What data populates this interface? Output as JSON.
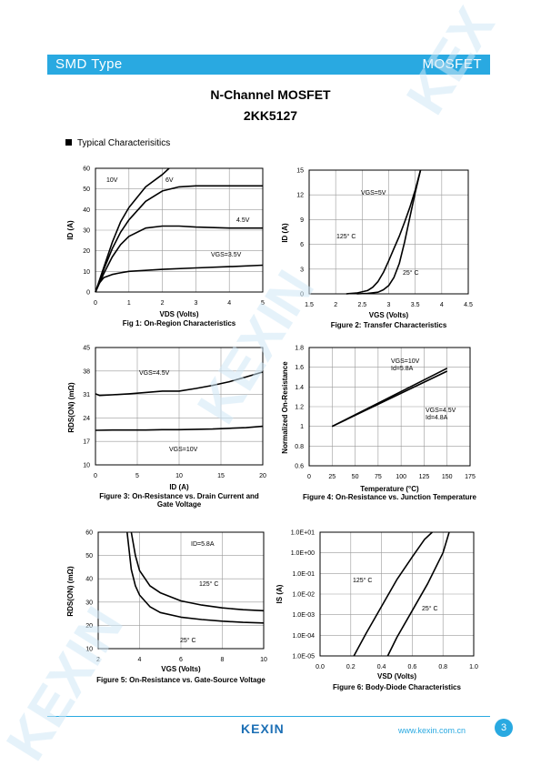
{
  "header": {
    "left": "SMD Type",
    "right": "MOSFET"
  },
  "title": {
    "line1": "N-Channel MOSFET",
    "line2": "2KK5127"
  },
  "section": "Typical  Characterisitics",
  "footer": {
    "logo": "KEXIN",
    "url": "www.kexin.com.cn",
    "page": "3"
  },
  "chart_data": [
    {
      "type": "line",
      "caption": "Fig 1: On-Region Characteristics",
      "xlabel": "VDS (Volts)",
      "ylabel": "ID (A)",
      "xlim": [
        0,
        5
      ],
      "ylim": [
        0,
        60
      ],
      "xticks": [
        "0",
        "1",
        "2",
        "3",
        "4",
        "5"
      ],
      "yticks": [
        "0",
        "10",
        "20",
        "30",
        "40",
        "50",
        "60"
      ],
      "series": [
        {
          "name": "10V",
          "x": [
            0,
            0.25,
            0.5,
            0.75,
            1,
            1.5,
            2,
            2.2
          ],
          "y": [
            0,
            12,
            24,
            34,
            41,
            51,
            57,
            60
          ]
        },
        {
          "name": "6V",
          "x": [
            0,
            0.25,
            0.5,
            0.75,
            1,
            1.5,
            2,
            2.5,
            3,
            4,
            5
          ],
          "y": [
            0,
            11,
            21,
            29,
            35,
            44,
            49,
            51,
            51.5,
            51.5,
            51.5
          ]
        },
        {
          "name": "4.5V",
          "x": [
            0,
            0.25,
            0.5,
            0.75,
            1,
            1.5,
            2,
            2.5,
            3,
            4,
            5
          ],
          "y": [
            0,
            9,
            17,
            23,
            27,
            31,
            32,
            32,
            31.5,
            31,
            31
          ]
        },
        {
          "name": "VGS=3.5V",
          "x": [
            0,
            0.1,
            0.25,
            0.5,
            0.75,
            1,
            2,
            3,
            4,
            5
          ],
          "y": [
            0,
            4,
            7,
            8.5,
            9.3,
            10,
            11,
            11.7,
            12.3,
            13
          ]
        }
      ],
      "annotations": [
        "10V",
        "6V",
        "4.5V",
        "VGS=3.5V"
      ]
    },
    {
      "type": "line",
      "caption": "Figure 2: Transfer Characteristics",
      "xlabel": "VGS (Volts)",
      "ylabel": "ID (A)",
      "xlim": [
        1.5,
        4.5
      ],
      "ylim": [
        0,
        15
      ],
      "xticks": [
        "1.5",
        "2",
        "2.5",
        "3",
        "3.5",
        "4",
        "4.5"
      ],
      "yticks": [
        "0",
        "3",
        "6",
        "9",
        "12",
        "15"
      ],
      "series": [
        {
          "name": "125° C",
          "x": [
            2.2,
            2.4,
            2.6,
            2.7,
            2.8,
            2.9,
            3.0,
            3.1,
            3.2,
            3.3,
            3.4,
            3.5,
            3.6
          ],
          "y": [
            0,
            0.1,
            0.4,
            0.8,
            1.5,
            2.6,
            4,
            5.5,
            7,
            8.7,
            10.5,
            12.6,
            15
          ]
        },
        {
          "name": "25° C",
          "x": [
            2.4,
            2.6,
            2.8,
            2.9,
            3.0,
            3.1,
            3.2,
            3.3,
            3.4,
            3.5,
            3.6
          ],
          "y": [
            0,
            0.05,
            0.2,
            0.5,
            1,
            2,
            3.7,
            6.3,
            9.3,
            12.3,
            15
          ]
        }
      ],
      "annotations": [
        "VGS=5V",
        "125° C",
        "25° C"
      ]
    },
    {
      "type": "line",
      "caption": "Figure 3: On-Resistance vs. Drain Current and Gate Voltage",
      "xlabel": "ID (A)",
      "ylabel": "RDS(ON) (mΩ)",
      "xlim": [
        0,
        20
      ],
      "ylim": [
        10,
        45
      ],
      "xticks": [
        "0",
        "5",
        "10",
        "15",
        "20"
      ],
      "yticks": [
        "10",
        "17",
        "24",
        "31",
        "38",
        "45"
      ],
      "series": [
        {
          "name": "VGS=4.5V",
          "x": [
            0,
            0.5,
            2,
            4,
            6,
            8,
            10,
            12,
            14,
            16,
            18,
            20
          ],
          "y": [
            31.2,
            30.7,
            30.9,
            31.2,
            31.6,
            32,
            32,
            32.8,
            33.7,
            34.8,
            36.2,
            37.7
          ]
        },
        {
          "name": "VGS=10V",
          "x": [
            0,
            2,
            4,
            6,
            8,
            10,
            12,
            14,
            16,
            18,
            20
          ],
          "y": [
            20.3,
            20.4,
            20.4,
            20.4,
            20.5,
            20.5,
            20.6,
            20.7,
            20.9,
            21.1,
            21.5
          ]
        }
      ],
      "annotations": [
        "VGS=4.5V",
        "VGS=10V"
      ]
    },
    {
      "type": "line",
      "caption": "Figure 4: On-Resistance vs. Junction Temperature",
      "xlabel": "Temperature (°C)",
      "ylabel": "Normalized On-Resistance",
      "xlim": [
        0,
        175
      ],
      "ylim": [
        0.6,
        1.8
      ],
      "xticks": [
        "0",
        "25",
        "50",
        "75",
        "100",
        "125",
        "150",
        "175"
      ],
      "yticks": [
        "0.6",
        "0.8",
        "1",
        "1.2",
        "1.4",
        "1.6",
        "1.8"
      ],
      "series": [
        {
          "name": "VGS=10V Id=5.8A",
          "x": [
            25,
            150
          ],
          "y": [
            1.0,
            1.59
          ]
        },
        {
          "name": "VGS=4.5V Id=4.8A",
          "x": [
            25,
            150
          ],
          "y": [
            1.0,
            1.56
          ]
        }
      ],
      "annotations": [
        "VGS=10V",
        "Id=5.8A",
        "VGS=4.5V",
        "Id=4.8A"
      ]
    },
    {
      "type": "line",
      "caption": "Figure 5: On-Resistance vs. Gate-Source Voltage",
      "xlabel": "VGS (Volts)",
      "ylabel": "RDS(ON) (mΩ)",
      "xlim": [
        2,
        10
      ],
      "ylim": [
        10,
        60
      ],
      "xticks": [
        "2",
        "4",
        "6",
        "8",
        "10"
      ],
      "yticks": [
        "10",
        "20",
        "30",
        "40",
        "50",
        "60"
      ],
      "series": [
        {
          "name": "125° C",
          "x": [
            3.6,
            3.8,
            4,
            4.5,
            5,
            6,
            7,
            8,
            9,
            10
          ],
          "y": [
            60,
            50,
            43.5,
            37,
            34,
            30.5,
            28.7,
            27.5,
            26.7,
            26.3
          ]
        },
        {
          "name": "25° C",
          "x": [
            3.4,
            3.6,
            3.8,
            4,
            4.5,
            5,
            6,
            7,
            8,
            9,
            10
          ],
          "y": [
            60,
            44,
            37,
            33,
            28,
            25.5,
            23.5,
            22.5,
            21.8,
            21.3,
            21
          ]
        }
      ],
      "annotations": [
        "ID=5.8A",
        "125° C",
        "25° C"
      ]
    },
    {
      "type": "line",
      "caption": "Figure 6: Body-Diode Characteristics",
      "xlabel": "VSD (Volts)",
      "ylabel": "IS (A)",
      "xlim": [
        0,
        1.0
      ],
      "ylim": [
        1e-05,
        10
      ],
      "yscale": "log",
      "xticks": [
        "0.0",
        "0.2",
        "0.4",
        "0.6",
        "0.8",
        "1.0"
      ],
      "yticks": [
        "1.0E-05",
        "1.0E-04",
        "1.0E-03",
        "1.0E-02",
        "1.0E-01",
        "1.0E+00",
        "1.0E+01"
      ],
      "series": [
        {
          "name": "125° C",
          "x": [
            0.22,
            0.3,
            0.4,
            0.5,
            0.6,
            0.68,
            0.73
          ],
          "y": [
            1e-05,
            0.000126,
            0.00251,
            0.0501,
            0.631,
            4.47,
            10
          ]
        },
        {
          "name": "25° C",
          "x": [
            0.44,
            0.5,
            0.6,
            0.7,
            0.8,
            0.84
          ],
          "y": [
            1e-05,
            7.94e-05,
            0.00158,
            0.0316,
            1,
            10
          ]
        }
      ],
      "annotations": [
        "125° C",
        "25° C"
      ]
    }
  ]
}
